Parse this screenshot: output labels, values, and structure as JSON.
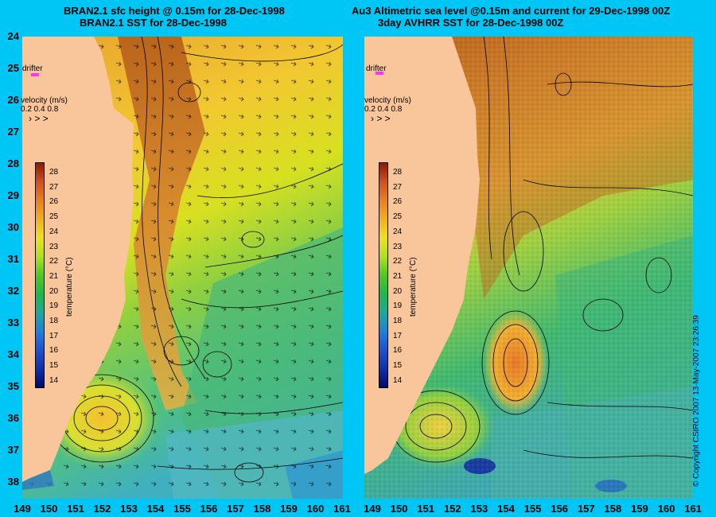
{
  "titles": {
    "left_line1": "BRAN2.1 sfc height @ 0.15m for 28-Dec-1998",
    "left_line2": "BRAN2.1 SST for 28-Dec-1998",
    "right_line1": "Au3 Altimetric sea level  @0.15m and current for 29-Dec-1998 00Z",
    "right_line2": "3day AVHRR SST for 28-Dec-1998 00Z"
  },
  "axes": {
    "lat_ticks": [
      "24",
      "25",
      "26",
      "27",
      "28",
      "29",
      "30",
      "31",
      "32",
      "33",
      "34",
      "35",
      "36",
      "37",
      "38"
    ],
    "lon_ticks": [
      "149",
      "150",
      "151",
      "152",
      "153",
      "154",
      "155",
      "156",
      "157",
      "158",
      "159",
      "160",
      "161"
    ],
    "lon_ticks_right": [
      "149",
      "150",
      "151",
      "152",
      "153",
      "154",
      "155",
      "156",
      "157",
      "158",
      "159",
      "160",
      "161"
    ]
  },
  "panel_labels": {
    "drifter": "drifter",
    "velocity": "velocity (m/s)",
    "velocity_scale": "0.2 0.4 0.8"
  },
  "colorbar": {
    "title": "temperature (°C)",
    "ticks": [
      "28",
      "27",
      "26",
      "25",
      "24",
      "23",
      "22",
      "21",
      "20",
      "19",
      "18",
      "17",
      "16",
      "15",
      "14"
    ]
  },
  "copyright": "© Copyright CSIRO 2007  13-May-2007 23:26:39",
  "colors": {
    "background": "#00c6f5",
    "land": "#f9c59a",
    "drifter": "#ff33ff"
  }
}
